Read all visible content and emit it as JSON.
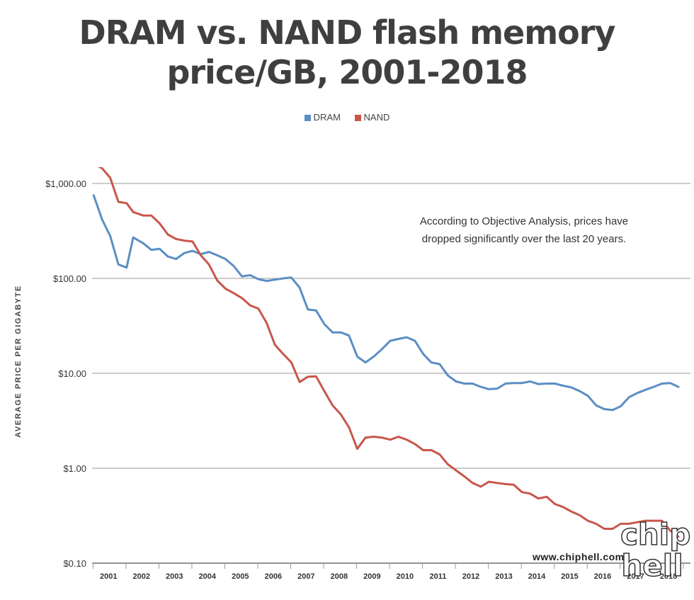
{
  "title": {
    "line1": "DRAM vs. NAND flash memory",
    "line2": "price/GB, 2001-2018"
  },
  "legend": [
    {
      "label": "DRAM",
      "color": "#5b8ec4"
    },
    {
      "label": "NAND",
      "color": "#c8574b"
    }
  ],
  "annotation": {
    "line1": "According to Objective Analysis, prices have",
    "line2": "dropped significantly over the last 20 years."
  },
  "watermark": {
    "text": "www.chiphell.com",
    "logo": "chip hell"
  },
  "chart_data": {
    "type": "line",
    "title": "DRAM vs. NAND flash memory price/GB, 2001-2018",
    "xlabel": "",
    "ylabel": "AVERAGE PRICE PER GIGABYTE",
    "yscale": "log",
    "ylim": [
      0.1,
      1500
    ],
    "yticks": [
      {
        "value": 1000,
        "label": "$1,000.00"
      },
      {
        "value": 100,
        "label": "$100.00"
      },
      {
        "value": 10,
        "label": "$10.00"
      },
      {
        "value": 1,
        "label": "$1.00"
      },
      {
        "value": 0.1,
        "label": "$0.10"
      }
    ],
    "xlim": [
      2000.95,
      2018.9
    ],
    "categories": [
      "2001",
      "2002",
      "2003",
      "2004",
      "2005",
      "2006",
      "2007",
      "2008",
      "2009",
      "2010",
      "2011",
      "2012",
      "2013",
      "2014",
      "2015",
      "2016",
      "2017",
      "2018"
    ],
    "series": [
      {
        "name": "DRAM",
        "color": "#5b8ec4",
        "x": [
          2001.0,
          2001.25,
          2001.5,
          2001.75,
          2002.0,
          2002.2,
          2002.5,
          2002.75,
          2003.0,
          2003.25,
          2003.5,
          2003.75,
          2004.0,
          2004.25,
          2004.5,
          2004.75,
          2005.0,
          2005.25,
          2005.5,
          2005.75,
          2006.0,
          2006.25,
          2006.5,
          2006.75,
          2007.0,
          2007.25,
          2007.5,
          2007.75,
          2008.0,
          2008.25,
          2008.5,
          2008.75,
          2009.0,
          2009.25,
          2009.5,
          2009.75,
          2010.0,
          2010.25,
          2010.5,
          2010.75,
          2011.0,
          2011.25,
          2011.5,
          2011.75,
          2012.0,
          2012.25,
          2012.5,
          2012.75,
          2013.0,
          2013.25,
          2013.5,
          2013.75,
          2014.0,
          2014.25,
          2014.5,
          2014.75,
          2015.0,
          2015.25,
          2015.5,
          2015.75,
          2016.0,
          2016.25,
          2016.5,
          2016.75,
          2017.0,
          2017.25,
          2017.5,
          2017.75,
          2018.0,
          2018.25,
          2018.5,
          2018.75
        ],
        "values": [
          750,
          420,
          280,
          140,
          130,
          270,
          235,
          200,
          205,
          170,
          160,
          185,
          195,
          180,
          190,
          175,
          160,
          135,
          105,
          108,
          98,
          94,
          97,
          100,
          102,
          80,
          47,
          46,
          33,
          27,
          27,
          25,
          15,
          13,
          15,
          18,
          22,
          23,
          24,
          22,
          16,
          13,
          12.5,
          9.5,
          8.2,
          7.8,
          7.8,
          7.2,
          6.8,
          6.9,
          7.8,
          7.9,
          7.9,
          8.2,
          7.7,
          7.8,
          7.8,
          7.4,
          7.1,
          6.5,
          5.8,
          4.6,
          4.2,
          4.1,
          4.5,
          5.6,
          6.2,
          6.7,
          7.2,
          7.8,
          7.9,
          7.2
        ]
      },
      {
        "name": "NAND",
        "color": "#c8574b",
        "x": [
          2001.0,
          2001.25,
          2001.5,
          2001.75,
          2002.0,
          2002.2,
          2002.5,
          2002.75,
          2003.0,
          2003.25,
          2003.5,
          2003.75,
          2004.0,
          2004.25,
          2004.5,
          2004.75,
          2005.0,
          2005.25,
          2005.5,
          2005.75,
          2006.0,
          2006.25,
          2006.5,
          2006.75,
          2007.0,
          2007.25,
          2007.5,
          2007.75,
          2008.0,
          2008.25,
          2008.5,
          2008.75,
          2009.0,
          2009.25,
          2009.5,
          2009.75,
          2010.0,
          2010.25,
          2010.5,
          2010.75,
          2011.0,
          2011.25,
          2011.5,
          2011.75,
          2012.0,
          2012.25,
          2012.5,
          2012.75,
          2013.0,
          2013.25,
          2013.5,
          2013.75,
          2014.0,
          2014.25,
          2014.5,
          2014.75,
          2015.0,
          2015.25,
          2015.5,
          2015.75,
          2016.0,
          2016.25,
          2016.5,
          2016.75,
          2017.0,
          2017.25,
          2017.5,
          2017.75,
          2018.0,
          2018.25,
          2018.5,
          2018.75
        ],
        "values": [
          1600,
          1450,
          1150,
          640,
          620,
          500,
          460,
          460,
          380,
          290,
          260,
          250,
          245,
          175,
          140,
          95,
          78,
          70,
          62,
          52,
          48,
          34,
          20,
          16,
          13,
          8.1,
          9.2,
          9.3,
          6.5,
          4.6,
          3.7,
          2.7,
          1.6,
          2.1,
          2.15,
          2.1,
          2.0,
          2.15,
          2.0,
          1.8,
          1.55,
          1.55,
          1.4,
          1.1,
          0.95,
          0.82,
          0.7,
          0.64,
          0.72,
          0.7,
          0.68,
          0.67,
          0.56,
          0.54,
          0.48,
          0.5,
          0.42,
          0.39,
          0.35,
          0.32,
          0.28,
          0.26,
          0.23,
          0.23,
          0.26,
          0.26,
          0.27,
          0.28,
          0.28,
          0.28,
          0.22,
          0.19
        ]
      }
    ]
  }
}
